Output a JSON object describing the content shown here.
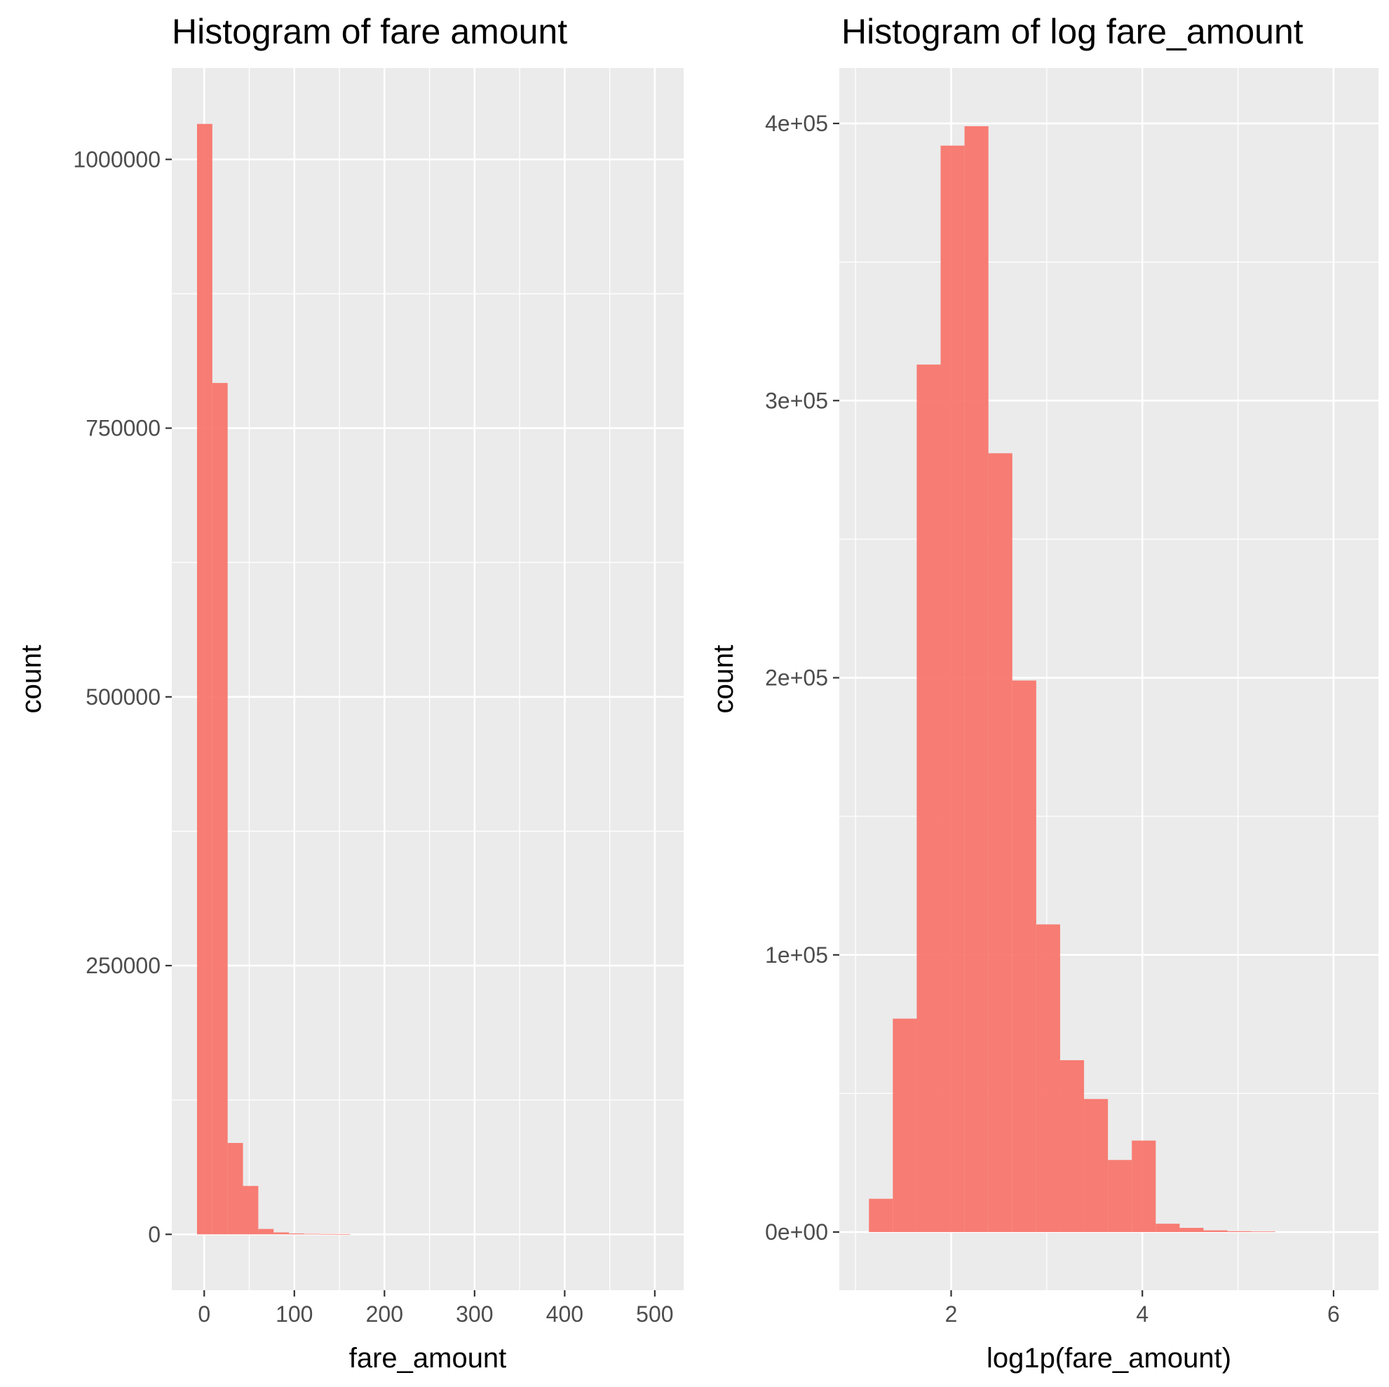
{
  "chart_data": [
    {
      "type": "bar",
      "title": "Histogram of fare amount",
      "xlabel": "fare_amount",
      "ylabel": "count",
      "bar_color": "#F8766D",
      "panel_background": "#EBEBEB",
      "grid": true,
      "xlim": [
        -36,
        532
      ],
      "ylim": [
        -52000,
        1085000
      ],
      "x_ticks": [
        0,
        100,
        200,
        300,
        400,
        500
      ],
      "x_tick_labels": [
        "0",
        "100",
        "200",
        "300",
        "400",
        "500"
      ],
      "y_ticks": [
        0,
        250000,
        500000,
        750000,
        1000000
      ],
      "y_tick_labels": [
        "0",
        "250000",
        "500000",
        "750000",
        "1000000"
      ],
      "bins": [
        {
          "x0": -8,
          "x1": 9,
          "count": 1033000
        },
        {
          "x0": 9,
          "x1": 26,
          "count": 792000
        },
        {
          "x0": 26,
          "x1": 43,
          "count": 85000
        },
        {
          "x0": 43,
          "x1": 60,
          "count": 45000
        },
        {
          "x0": 60,
          "x1": 77,
          "count": 5000
        },
        {
          "x0": 77,
          "x1": 94,
          "count": 1800
        },
        {
          "x0": 94,
          "x1": 111,
          "count": 800
        },
        {
          "x0": 111,
          "x1": 128,
          "count": 500
        },
        {
          "x0": 128,
          "x1": 145,
          "count": 350
        },
        {
          "x0": 145,
          "x1": 162,
          "count": 250
        }
      ]
    },
    {
      "type": "bar",
      "title": "Histogram of log fare_amount",
      "xlabel": "log1p(fare_amount)",
      "ylabel": "count",
      "bar_color": "#F8766D",
      "panel_background": "#EBEBEB",
      "grid": true,
      "xlim": [
        0.83,
        6.47
      ],
      "ylim": [
        -21000,
        420000
      ],
      "x_ticks": [
        2,
        4,
        6
      ],
      "x_tick_labels": [
        "2",
        "4",
        "6"
      ],
      "y_ticks": [
        0,
        100000,
        200000,
        300000,
        400000
      ],
      "y_tick_labels": [
        "0e+00",
        "1e+05",
        "2e+05",
        "3e+05",
        "4e+05"
      ],
      "bins": [
        {
          "x0": 1.14,
          "x1": 1.39,
          "count": 12000
        },
        {
          "x0": 1.39,
          "x1": 1.64,
          "count": 77000
        },
        {
          "x0": 1.64,
          "x1": 1.89,
          "count": 313000
        },
        {
          "x0": 1.89,
          "x1": 2.14,
          "count": 392000
        },
        {
          "x0": 2.14,
          "x1": 2.39,
          "count": 399000
        },
        {
          "x0": 2.39,
          "x1": 2.64,
          "count": 281000
        },
        {
          "x0": 2.64,
          "x1": 2.89,
          "count": 199000
        },
        {
          "x0": 2.89,
          "x1": 3.14,
          "count": 111000
        },
        {
          "x0": 3.14,
          "x1": 3.39,
          "count": 62000
        },
        {
          "x0": 3.39,
          "x1": 3.64,
          "count": 48000
        },
        {
          "x0": 3.64,
          "x1": 3.89,
          "count": 26000
        },
        {
          "x0": 3.89,
          "x1": 4.14,
          "count": 33000
        },
        {
          "x0": 4.14,
          "x1": 4.39,
          "count": 3000
        },
        {
          "x0": 4.39,
          "x1": 4.64,
          "count": 1500
        },
        {
          "x0": 4.64,
          "x1": 4.89,
          "count": 600
        },
        {
          "x0": 4.89,
          "x1": 5.14,
          "count": 300
        },
        {
          "x0": 5.14,
          "x1": 5.39,
          "count": 200
        }
      ]
    }
  ]
}
